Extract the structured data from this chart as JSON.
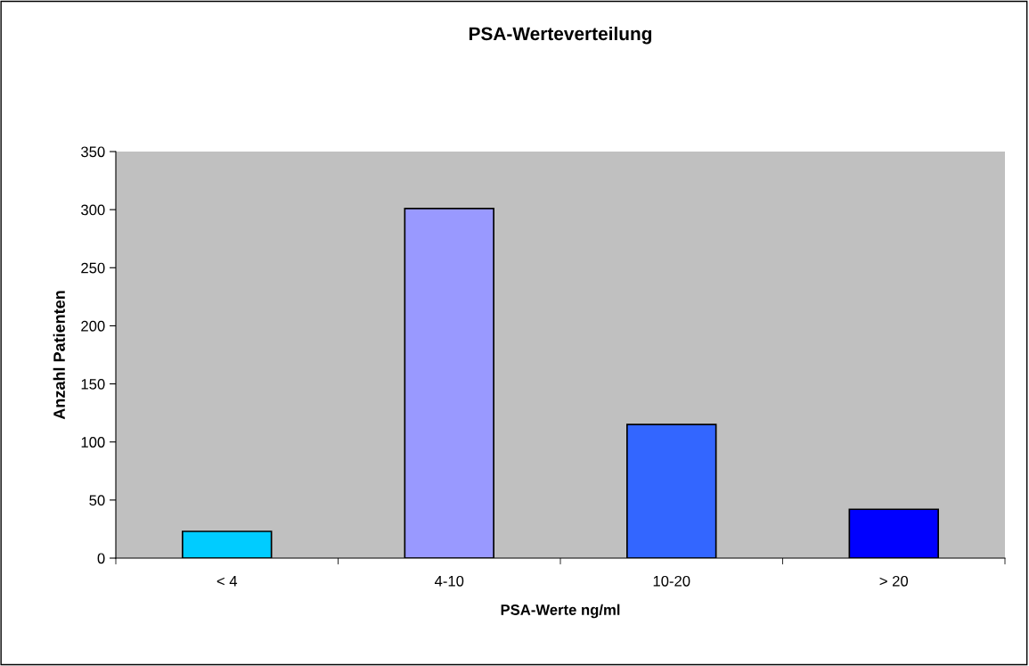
{
  "chart_data": {
    "type": "bar",
    "title": "PSA-Werteverteilung",
    "xlabel": "PSA-Werte ng/ml",
    "ylabel": "Anzahl Patienten",
    "categories": [
      "< 4",
      "4-10",
      "10-20",
      "> 20"
    ],
    "values": [
      23,
      301,
      115,
      42
    ],
    "colors": [
      "#00ccff",
      "#9999ff",
      "#3366ff",
      "#0000ff"
    ],
    "ylim": [
      0,
      350
    ],
    "yticks": [
      0,
      50,
      100,
      150,
      200,
      250,
      300,
      350
    ],
    "grid": false,
    "legend": false
  }
}
